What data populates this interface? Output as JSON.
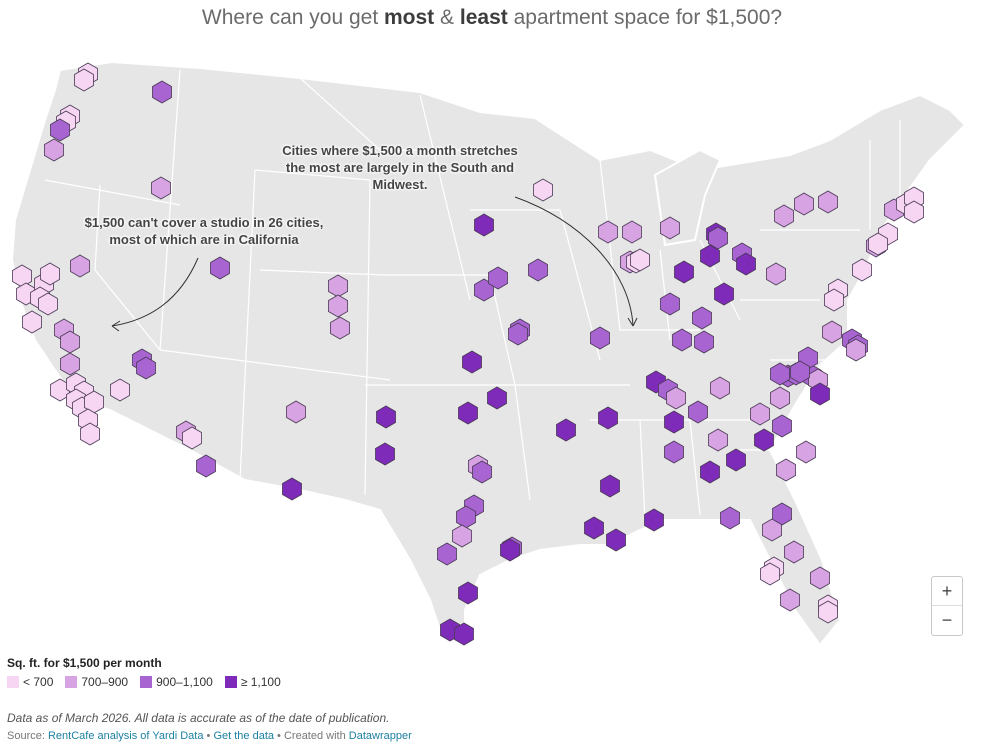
{
  "title": {
    "pre": "Where can you get ",
    "bold1": "most",
    "mid": " & ",
    "bold2": "least",
    "post": " apartment space for $1,500?"
  },
  "annotations": {
    "california": "$1,500 can't cover a studio in 26 cities, most of which are in California",
    "south_midwest": "Cities where $1,500 a month stretches the most are largely in the South and Midwest."
  },
  "zoom": {
    "plus": "+",
    "minus": "−"
  },
  "legend": {
    "title": "Sq. ft. for $1,500 per month",
    "items": [
      {
        "label": "< 700",
        "color": "#f6d6f2"
      },
      {
        "label": "700–900",
        "color": "#d7a3e3"
      },
      {
        "label": "900–1,100",
        "color": "#a865d2"
      },
      {
        "label": "≥ 1,100",
        "color": "#7d2bb8"
      }
    ]
  },
  "colors": {
    "land": "#e6e6e6",
    "border": "#ffffff",
    "hex_stroke": "#4a3a55"
  },
  "note": "Data as of March 2026. All data is accurate as of the date of publication.",
  "source": {
    "prefix": "Source: ",
    "source_link": "RentCafe analysis of Yardi Data",
    "sep1": " • ",
    "get_data": "Get the data",
    "sep2": " • Created with ",
    "dw": "Datawrapper"
  }
}
